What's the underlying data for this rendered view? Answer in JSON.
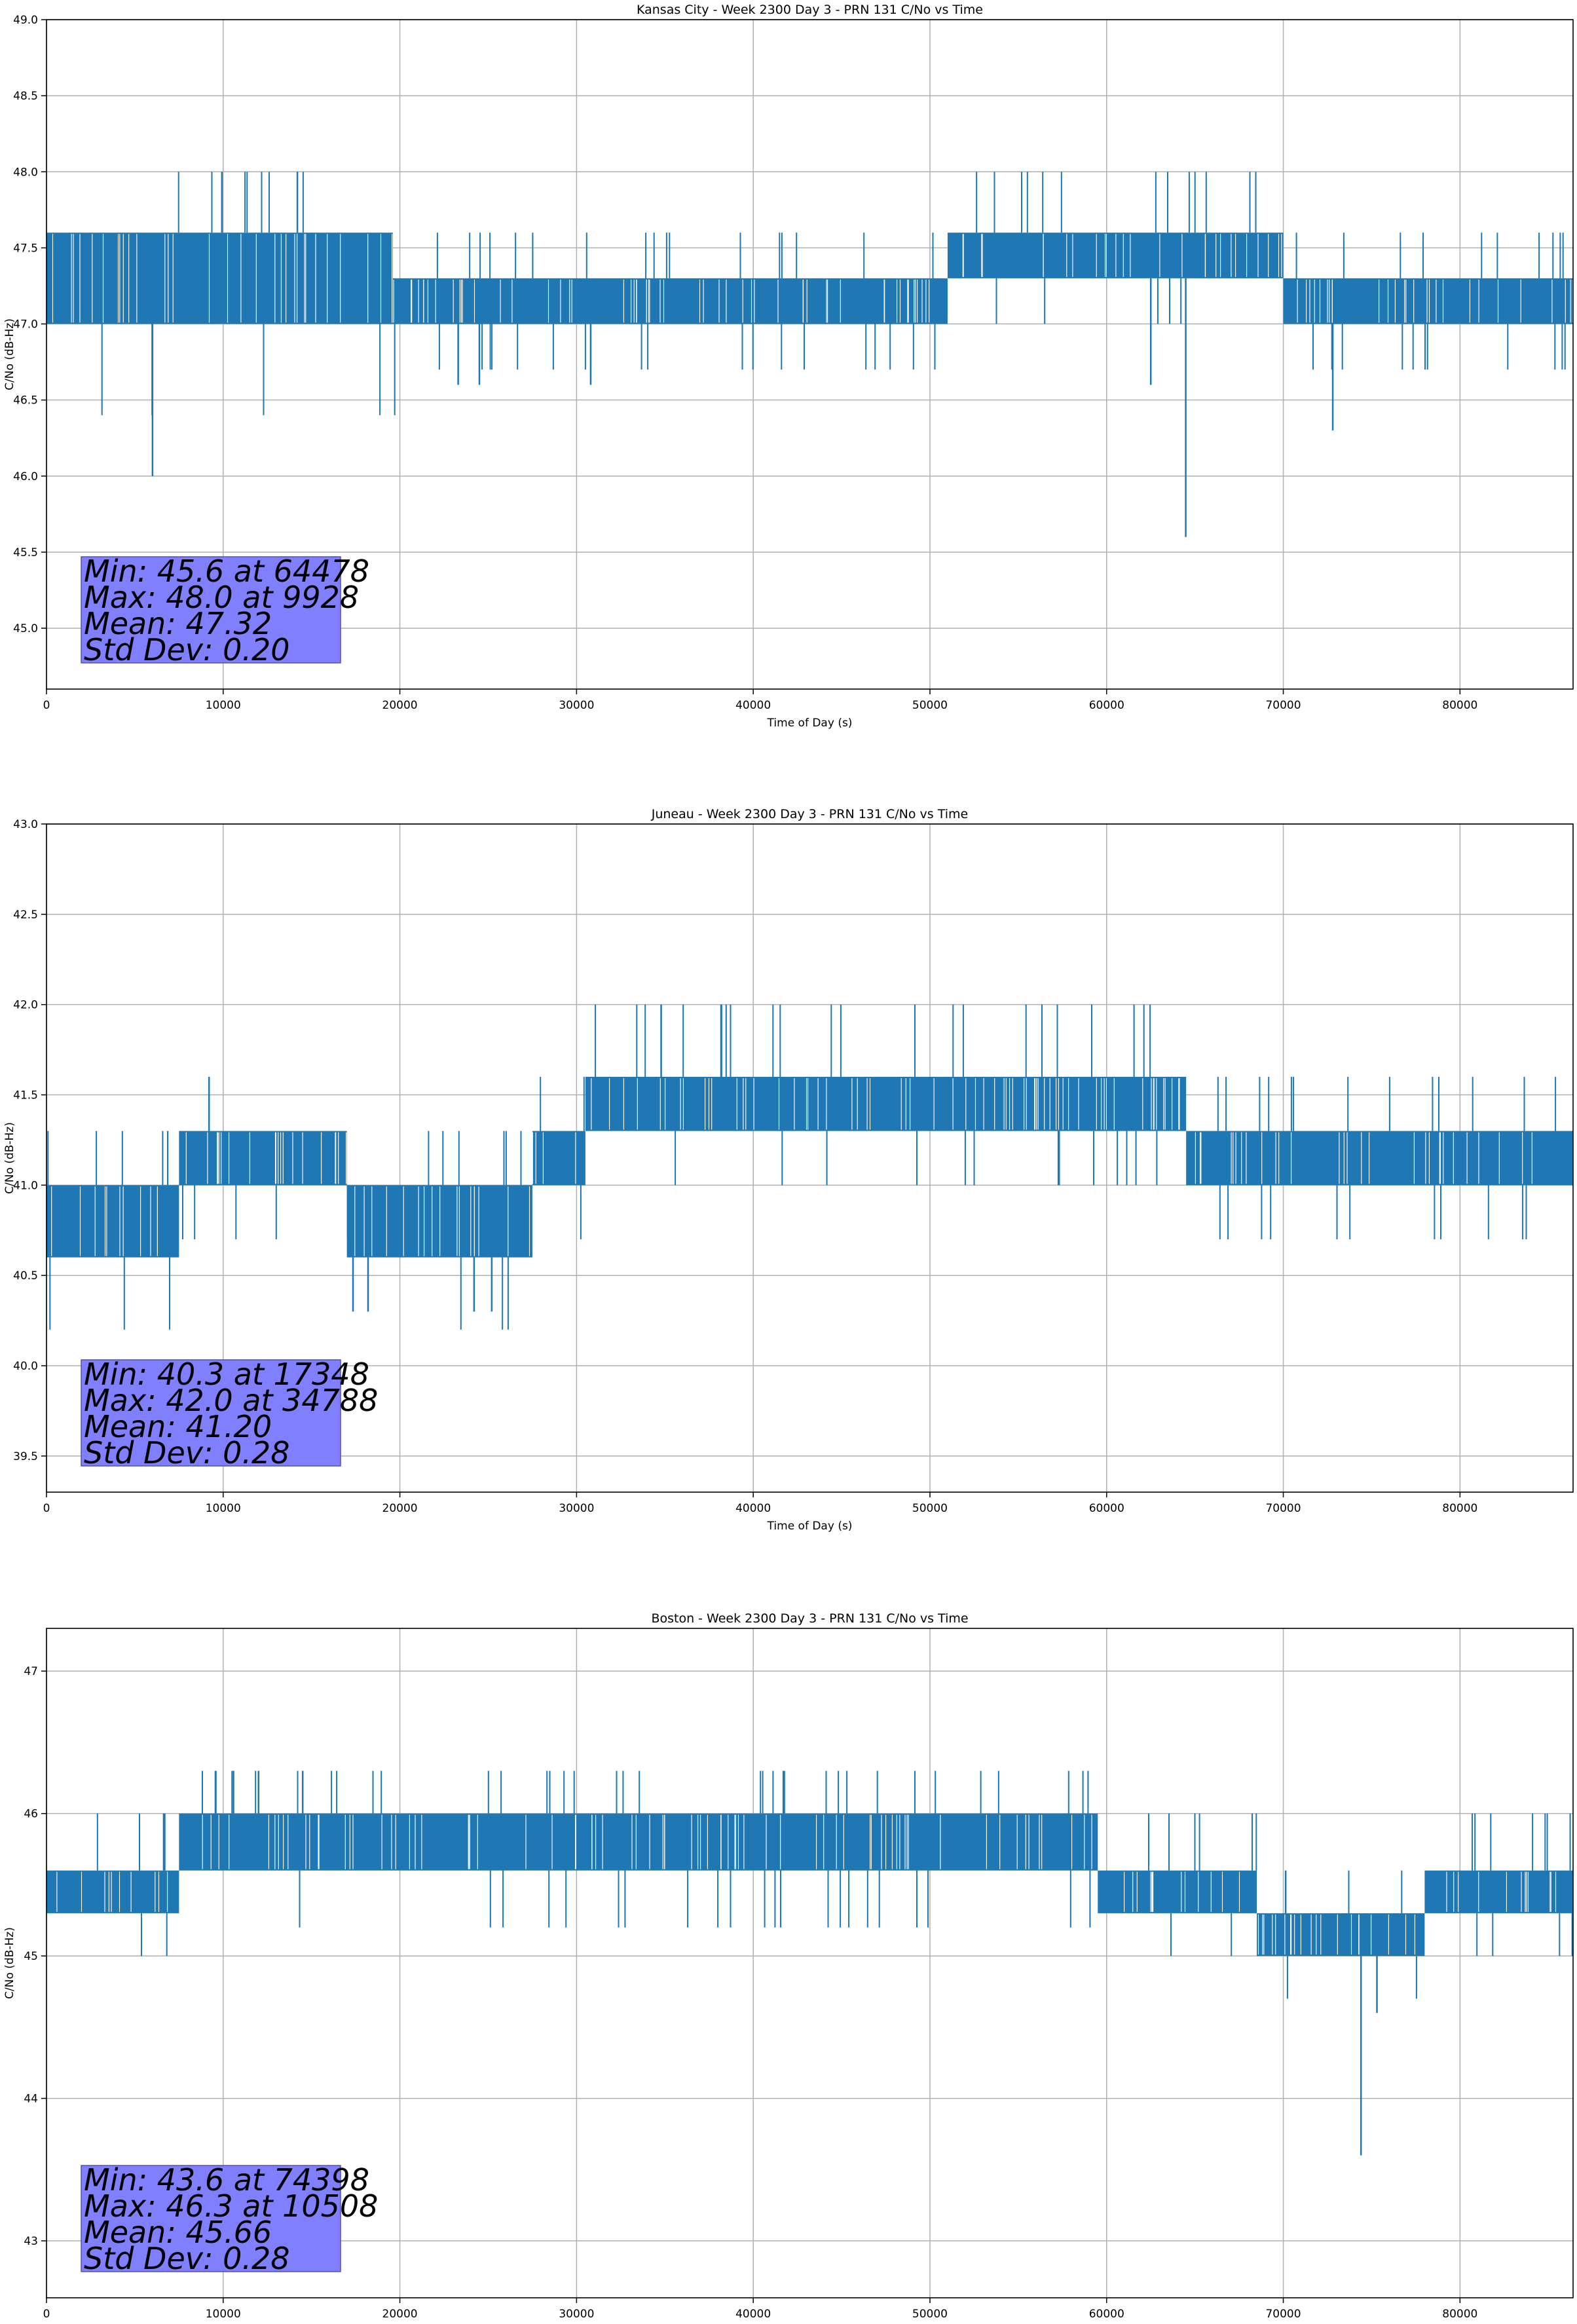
{
  "figure": {
    "accent_color": "#1f77b4",
    "stats_box_color": "#8080ff"
  },
  "chart_data": [
    {
      "type": "line",
      "title": "Kansas City - Week 2300 Day 3 - PRN 131 C/No vs Time",
      "xlabel": "Time of Day (s)",
      "ylabel": "C/No (dB-Hz)",
      "xlim": [
        0,
        86400
      ],
      "ylim": [
        44.6,
        49.0
      ],
      "xticks": [
        0,
        10000,
        20000,
        30000,
        40000,
        50000,
        60000,
        70000,
        80000
      ],
      "xtick_labels": [
        "0",
        "10000",
        "20000",
        "30000",
        "40000",
        "50000",
        "60000",
        "70000",
        "80000"
      ],
      "yticks": [
        45.0,
        45.5,
        46.0,
        46.5,
        47.0,
        47.5,
        48.0,
        48.5,
        49.0
      ],
      "ytick_labels": [
        "45.0",
        "45.5",
        "46.0",
        "46.5",
        "47.0",
        "47.5",
        "48.0",
        "48.5",
        "49.0"
      ],
      "grid": true,
      "series": [
        {
          "name": "C/No",
          "segments": [
            {
              "x": [
                0,
                5800
              ],
              "band": [
                47.0,
                47.6
              ],
              "spike_hi": 47.6
            },
            {
              "x": [
                5800,
                19600
              ],
              "band": [
                47.0,
                47.6
              ],
              "spike_hi": 48.0
            },
            {
              "x": [
                19600,
                51000
              ],
              "band": [
                47.0,
                47.3
              ],
              "spike_hi": 47.6
            },
            {
              "x": [
                51000,
                70000
              ],
              "band": [
                47.3,
                47.6
              ],
              "spike_hi": 48.0
            },
            {
              "x": [
                70000,
                86400
              ],
              "band": [
                47.0,
                47.3
              ],
              "spike_hi": 47.6
            }
          ],
          "spikes": [
            {
              "x": 6000,
              "y": 46.0
            },
            {
              "x": 23300,
              "y": 46.6
            },
            {
              "x": 24500,
              "y": 46.6
            },
            {
              "x": 30800,
              "y": 46.6
            },
            {
              "x": 62500,
              "y": 46.6
            },
            {
              "x": 64478,
              "y": 45.6
            },
            {
              "x": 72800,
              "y": 46.3
            },
            {
              "x": 9928,
              "y": 48.0
            },
            {
              "x": 14200,
              "y": 48.0
            },
            {
              "x": 15000,
              "y": 47.0
            }
          ]
        }
      ],
      "stats": {
        "min": "Min: 45.6 at 64478",
        "max": "Max: 48.0 at 9928",
        "mean": "Mean: 47.32",
        "std": "Std Dev: 0.20"
      }
    },
    {
      "type": "line",
      "title": "Juneau - Week 2300 Day 3 - PRN 131 C/No vs Time",
      "xlabel": "Time of Day (s)",
      "ylabel": "C/No (dB-Hz)",
      "xlim": [
        0,
        86400
      ],
      "ylim": [
        39.3,
        43.0
      ],
      "xticks": [
        0,
        10000,
        20000,
        30000,
        40000,
        50000,
        60000,
        70000,
        80000
      ],
      "xtick_labels": [
        "0",
        "10000",
        "20000",
        "30000",
        "40000",
        "50000",
        "60000",
        "70000",
        "80000"
      ],
      "yticks": [
        39.5,
        40.0,
        40.5,
        41.0,
        41.5,
        42.0,
        42.5,
        43.0
      ],
      "ytick_labels": [
        "39.5",
        "40.0",
        "40.5",
        "41.0",
        "41.5",
        "42.0",
        "42.5",
        "43.0"
      ],
      "grid": true,
      "series": [
        {
          "name": "C/No",
          "segments": [
            {
              "x": [
                0,
                7500
              ],
              "band": [
                40.6,
                41.0
              ],
              "spike_hi": 41.3
            },
            {
              "x": [
                7500,
                17000
              ],
              "band": [
                41.0,
                41.3
              ],
              "spike_hi": 41.3
            },
            {
              "x": [
                17000,
                27500
              ],
              "band": [
                40.6,
                41.0
              ],
              "spike_hi": 41.3
            },
            {
              "x": [
                27500,
                30500
              ],
              "band": [
                41.0,
                41.3
              ],
              "spike_hi": 41.6
            },
            {
              "x": [
                30500,
                64500
              ],
              "band": [
                41.3,
                41.6
              ],
              "spike_hi": 42.0
            },
            {
              "x": [
                64500,
                86400
              ],
              "band": [
                41.0,
                41.3
              ],
              "spike_hi": 41.6
            }
          ],
          "spikes": [
            {
              "x": 9200,
              "y": 41.6
            },
            {
              "x": 17348,
              "y": 40.3
            },
            {
              "x": 18200,
              "y": 40.3
            },
            {
              "x": 24200,
              "y": 40.3
            },
            {
              "x": 25200,
              "y": 40.3
            },
            {
              "x": 34788,
              "y": 42.0
            },
            {
              "x": 38200,
              "y": 42.0
            }
          ]
        }
      ],
      "stats": {
        "min": "Min: 40.3 at 17348",
        "max": "Max: 42.0 at 34788",
        "mean": "Mean: 41.20",
        "std": "Std Dev: 0.28"
      }
    },
    {
      "type": "line",
      "title": "Boston - Week 2300 Day 3 - PRN 131 C/No vs Time",
      "xlabel": "Time of Day (s)",
      "ylabel": "C/No (dB-Hz)",
      "xlim": [
        0,
        86400
      ],
      "ylim": [
        42.6,
        47.3
      ],
      "xticks": [
        0,
        10000,
        20000,
        30000,
        40000,
        50000,
        60000,
        70000,
        80000
      ],
      "xtick_labels": [
        "0",
        "10000",
        "20000",
        "30000",
        "40000",
        "50000",
        "60000",
        "70000",
        "80000"
      ],
      "yticks": [
        43,
        44,
        45,
        46,
        47
      ],
      "ytick_labels": [
        "43",
        "44",
        "45",
        "46",
        "47"
      ],
      "grid": true,
      "series": [
        {
          "name": "C/No",
          "segments": [
            {
              "x": [
                0,
                7500
              ],
              "band": [
                45.3,
                45.6
              ],
              "spike_hi": 46.0
            },
            {
              "x": [
                7500,
                59500
              ],
              "band": [
                45.6,
                46.0
              ],
              "spike_hi": 46.3
            },
            {
              "x": [
                59500,
                68500
              ],
              "band": [
                45.3,
                45.6
              ],
              "spike_hi": 46.0
            },
            {
              "x": [
                68500,
                78000
              ],
              "band": [
                45.0,
                45.3
              ],
              "spike_hi": 45.6
            },
            {
              "x": [
                78000,
                86400
              ],
              "band": [
                45.3,
                45.6
              ],
              "spike_hi": 46.0
            }
          ],
          "spikes": [
            {
              "x": 74398,
              "y": 43.6
            },
            {
              "x": 75300,
              "y": 44.6
            },
            {
              "x": 10508,
              "y": 46.3
            },
            {
              "x": 12000,
              "y": 46.3
            },
            {
              "x": 14500,
              "y": 46.3
            }
          ]
        }
      ],
      "stats": {
        "min": "Min: 43.6 at 74398",
        "max": "Max: 46.3 at 10508",
        "mean": "Mean: 45.66",
        "std": "Std Dev: 0.28"
      }
    }
  ]
}
